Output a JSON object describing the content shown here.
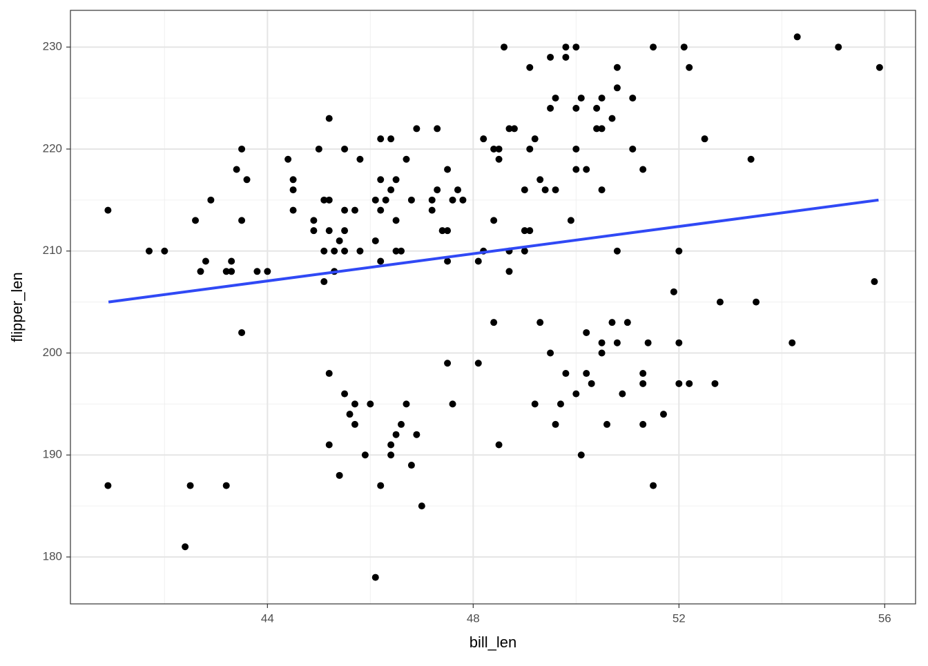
{
  "chart_data": {
    "type": "scatter",
    "xlabel": "bill_len",
    "ylabel": "flipper_len",
    "xlim": [
      40.17,
      56.6
    ],
    "ylim": [
      175.4,
      233.6
    ],
    "xticks": [
      44,
      48,
      52,
      56
    ],
    "yticks": [
      180,
      190,
      200,
      210,
      220,
      230
    ],
    "minor_xticks": [
      42,
      46,
      50,
      54
    ],
    "minor_yticks": [
      185,
      195,
      205,
      215,
      225
    ],
    "grid": true,
    "color": "#000000",
    "x": [
      40.9,
      40.9,
      41.7,
      42.0,
      42.4,
      42.5,
      42.6,
      42.7,
      42.8,
      42.9,
      43.2,
      43.2,
      43.3,
      43.3,
      43.4,
      43.5,
      43.5,
      43.5,
      43.6,
      43.8,
      44.0,
      44.4,
      44.5,
      44.5,
      44.5,
      44.9,
      44.9,
      45.0,
      45.1,
      45.1,
      45.1,
      45.2,
      45.2,
      45.2,
      45.2,
      45.2,
      45.3,
      45.3,
      45.4,
      45.4,
      45.5,
      45.5,
      45.5,
      45.5,
      45.5,
      45.6,
      45.7,
      45.7,
      45.7,
      45.8,
      45.8,
      45.9,
      46.0,
      46.1,
      46.1,
      46.1,
      46.2,
      46.2,
      46.2,
      46.2,
      46.2,
      46.3,
      46.4,
      46.4,
      46.4,
      46.4,
      46.5,
      46.5,
      46.5,
      46.5,
      46.6,
      46.6,
      46.7,
      46.7,
      46.8,
      46.8,
      46.9,
      46.9,
      47.0,
      47.2,
      47.2,
      47.3,
      47.3,
      47.4,
      47.5,
      47.5,
      47.5,
      47.5,
      47.6,
      47.6,
      47.7,
      47.8,
      48.1,
      48.1,
      48.2,
      48.2,
      48.4,
      48.4,
      48.4,
      48.5,
      48.5,
      48.5,
      48.6,
      48.7,
      48.7,
      48.7,
      48.8,
      49.0,
      49.0,
      49.0,
      49.1,
      49.1,
      49.1,
      49.2,
      49.2,
      49.3,
      49.3,
      49.4,
      49.5,
      49.5,
      49.5,
      49.6,
      49.6,
      49.6,
      49.7,
      49.8,
      49.8,
      49.8,
      49.9,
      50.0,
      50.0,
      50.0,
      50.0,
      50.0,
      50.1,
      50.1,
      50.2,
      50.2,
      50.2,
      50.3,
      50.4,
      50.4,
      50.5,
      50.5,
      50.5,
      50.5,
      50.5,
      50.6,
      50.7,
      50.7,
      50.8,
      50.8,
      50.8,
      50.8,
      50.9,
      51.0,
      51.1,
      51.1,
      51.3,
      51.3,
      51.3,
      51.3,
      51.4,
      51.5,
      51.5,
      51.7,
      51.9,
      52.0,
      52.0,
      52.0,
      52.1,
      52.2,
      52.2,
      52.5,
      52.7,
      52.8,
      53.4,
      53.5,
      54.2,
      54.3,
      55.1,
      55.8,
      55.9
    ],
    "values": [
      214,
      187,
      210,
      210,
      181,
      187,
      213,
      208,
      209,
      215,
      208,
      187,
      208,
      209,
      218,
      220,
      213,
      202,
      217,
      208,
      208,
      219,
      217,
      216,
      214,
      213,
      212,
      220,
      215,
      210,
      207,
      223,
      215,
      212,
      198,
      191,
      210,
      208,
      211,
      188,
      220,
      214,
      212,
      210,
      196,
      194,
      214,
      195,
      193,
      219,
      210,
      190,
      195,
      215,
      211,
      178,
      221,
      217,
      214,
      209,
      187,
      215,
      221,
      216,
      191,
      190,
      217,
      213,
      210,
      192,
      210,
      193,
      219,
      195,
      215,
      189,
      222,
      192,
      185,
      215,
      214,
      222,
      216,
      212,
      218,
      212,
      209,
      199,
      215,
      195,
      216,
      215,
      209,
      199,
      221,
      210,
      220,
      213,
      203,
      220,
      219,
      191,
      230,
      222,
      210,
      208,
      222,
      216,
      212,
      210,
      228,
      220,
      212,
      221,
      195,
      217,
      203,
      216,
      229,
      224,
      200,
      225,
      216,
      193,
      195,
      230,
      229,
      198,
      213,
      230,
      224,
      220,
      218,
      196,
      225,
      190,
      218,
      202,
      198,
      197,
      224,
      222,
      225,
      222,
      216,
      201,
      200,
      193,
      223,
      203,
      228,
      226,
      210,
      201,
      196,
      203,
      225,
      220,
      218,
      198,
      197,
      193,
      201,
      230,
      187,
      194,
      206,
      210,
      201,
      197,
      230,
      228,
      197,
      221,
      197,
      205,
      219,
      205,
      201,
      231,
      230,
      207,
      228
    ],
    "trend": {
      "color": "#3049f5",
      "x": [
        40.91,
        55.88
      ],
      "values": [
        205,
        215
      ]
    }
  }
}
